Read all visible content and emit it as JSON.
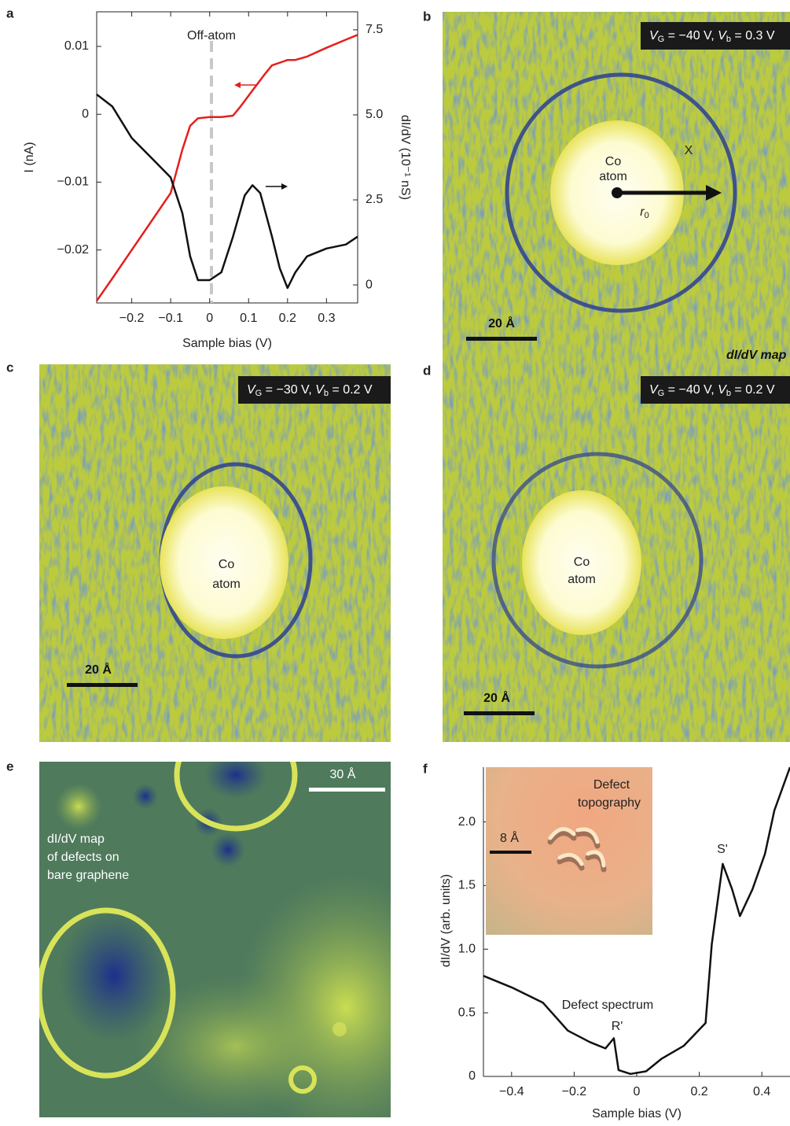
{
  "panel_labels": [
    "a",
    "b",
    "c",
    "d",
    "e",
    "f"
  ],
  "chart_data": [
    {
      "type": "line",
      "xlabel": "Sample bias (V)",
      "ylabel": "I (nA)",
      "y2label": "dI/dV (10⁻¹ nS)",
      "annotations": [
        "Off-atom"
      ],
      "xlim": [
        -0.29,
        0.38
      ],
      "xticks": [
        {
          "value": -0.2,
          "label": "−0.2"
        },
        {
          "value": -0.1,
          "label": "−0.1"
        },
        0,
        0.1,
        0.2,
        0.3
      ],
      "ylim": [
        -0.0278,
        0.0151
      ],
      "yticks": [
        {
          "value": -0.02,
          "label": "−0.02"
        },
        {
          "value": -0.01,
          "label": "−0.01"
        },
        0,
        0.01
      ],
      "y2lim": [
        -0.53,
        8.03
      ],
      "y2ticks": [
        0,
        2.5,
        {
          "value": 5,
          "label": "5.0"
        },
        7.5
      ],
      "series": [
        {
          "color": "#e3201b",
          "x": [
            -0.29,
            -0.25,
            -0.2,
            -0.15,
            -0.1,
            -0.07,
            -0.05,
            -0.03,
            0,
            0.03,
            0.06,
            0.08,
            0.11,
            0.14,
            0.16,
            0.19,
            0.2,
            0.22,
            0.25,
            0.3,
            0.35,
            0.38
          ],
          "values": [
            -0.0275,
            -0.0242,
            -0.02,
            -0.0158,
            -0.0116,
            -0.0052,
            -0.0017,
            -0.0006,
            -0.0004,
            -0.0004,
            -0.0002,
            0.0012,
            0.0035,
            0.0058,
            0.0072,
            0.0078,
            0.008,
            0.008,
            0.0085,
            0.0098,
            0.011,
            0.0117
          ]
        },
        {
          "color": "#111111",
          "axis": "y2",
          "x": [
            -0.29,
            -0.25,
            -0.2,
            -0.15,
            -0.1,
            -0.07,
            -0.05,
            -0.03,
            0,
            0.03,
            0.06,
            0.09,
            0.11,
            0.13,
            0.16,
            0.18,
            0.2,
            0.22,
            0.25,
            0.3,
            0.35,
            0.38
          ],
          "values": [
            5.6,
            5.25,
            4.32,
            3.74,
            3.16,
            2.11,
            0.84,
            0.14,
            0.14,
            0.37,
            1.42,
            2.63,
            2.93,
            2.7,
            1.42,
            0.49,
            -0.09,
            0.37,
            0.84,
            1.07,
            1.19,
            1.42
          ]
        }
      ]
    },
    {
      "type": "line",
      "xlabel": "Sample bias (V)",
      "ylabel": "dI/dV (arb. units)",
      "annotations": [
        "Defect spectrum",
        "R'",
        "S'"
      ],
      "inset": {
        "title": [
          "Defect",
          "topography"
        ],
        "scale_bar": "8 Å"
      },
      "xlim": [
        -0.49,
        0.49
      ],
      "xticks": [
        {
          "value": -0.4,
          "label": "−0.4"
        },
        {
          "value": -0.2,
          "label": "−0.2"
        },
        0,
        0.2,
        0.4
      ],
      "ylim": [
        0,
        2.43
      ],
      "yticks": [
        0,
        0.5,
        {
          "value": 1,
          "label": "1.0"
        },
        1.5,
        {
          "value": 2,
          "label": "2.0"
        }
      ],
      "series": [
        {
          "color": "#111111",
          "x": [
            -0.49,
            -0.4,
            -0.3,
            -0.22,
            -0.15,
            -0.1,
            -0.073,
            -0.058,
            -0.02,
            0.03,
            0.08,
            0.15,
            0.22,
            0.24,
            0.275,
            0.305,
            0.33,
            0.37,
            0.41,
            0.44,
            0.49
          ],
          "values": [
            0.79,
            0.7,
            0.58,
            0.36,
            0.27,
            0.22,
            0.3,
            0.05,
            0.02,
            0.04,
            0.14,
            0.24,
            0.42,
            1.04,
            1.67,
            1.47,
            1.26,
            1.47,
            1.75,
            2.09,
            2.43
          ]
        }
      ]
    }
  ],
  "maps": {
    "b": {
      "badge": [
        "V",
        "G",
        " = −40 V, ",
        "V",
        "b",
        " = 0.3 V"
      ],
      "atom": [
        "Co",
        "atom"
      ],
      "radius": [
        "r",
        "0"
      ],
      "marker": "X",
      "scale_bar": "20 Å",
      "caption": "dI/dV map"
    },
    "c": {
      "badge": [
        "V",
        "G",
        " = −30 V, ",
        "V",
        "b",
        " = 0.2 V"
      ],
      "atom": [
        "Co",
        "atom"
      ],
      "scale_bar": "20 Å"
    },
    "d": {
      "badge": [
        "V",
        "G",
        " = −40 V, ",
        "V",
        "b",
        " = 0.2 V"
      ],
      "atom": [
        "Co",
        "atom"
      ],
      "scale_bar": "20 Å"
    },
    "e": {
      "scale_bar": "30 Å",
      "caption": [
        "dI/dV map",
        "of defects on",
        "bare graphene"
      ]
    }
  }
}
